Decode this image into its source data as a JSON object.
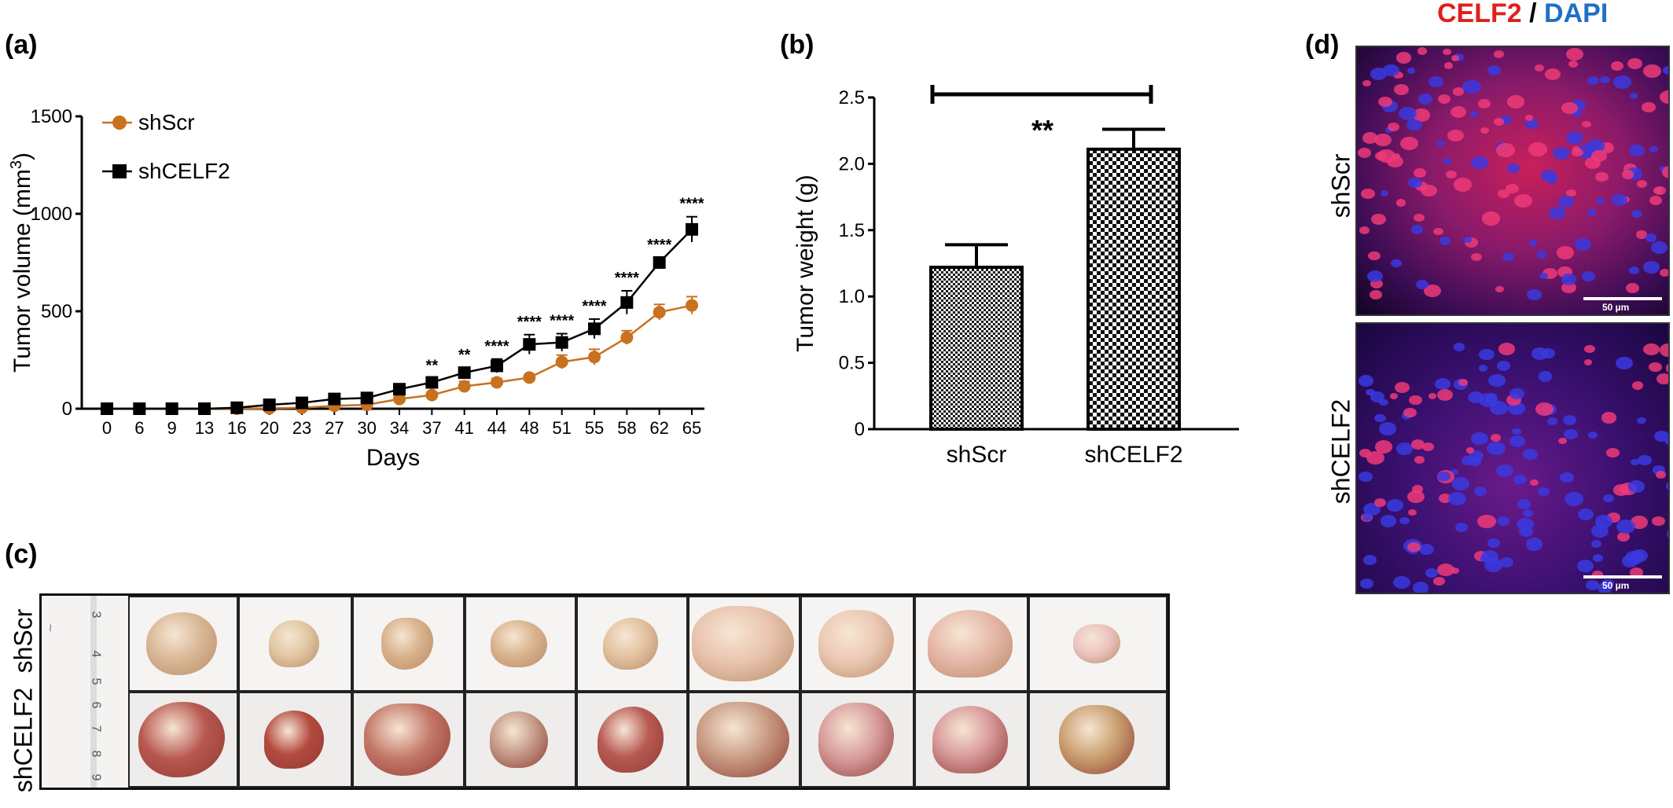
{
  "panels": {
    "a": "(a)",
    "b": "(b)",
    "c": "(c)",
    "d": "(d)"
  },
  "chart_data": [
    {
      "type": "line",
      "panel": "(a)",
      "xlabel": "Days",
      "ylabel": "Tumor volume (mm³)",
      "ylim": [
        0,
        1500
      ],
      "yticks": [
        0,
        500,
        1000,
        1500
      ],
      "categories": [
        "0",
        "6",
        "9",
        "13",
        "16",
        "20",
        "23",
        "27",
        "30",
        "34",
        "37",
        "41",
        "44",
        "48",
        "51",
        "55",
        "58",
        "62",
        "65"
      ],
      "legend_position": "top-left",
      "series": [
        {
          "name": "shScr",
          "color": "#c8711f",
          "marker": "circle",
          "values": [
            0,
            0,
            0,
            0,
            0,
            2,
            5,
            15,
            20,
            50,
            70,
            115,
            135,
            160,
            240,
            265,
            365,
            495,
            530
          ],
          "errors": [
            0,
            0,
            0,
            0,
            0,
            5,
            5,
            10,
            10,
            12,
            15,
            25,
            20,
            15,
            35,
            40,
            35,
            40,
            45
          ]
        },
        {
          "name": "shCELF2",
          "color": "#000000",
          "marker": "square",
          "values": [
            0,
            0,
            0,
            0,
            5,
            20,
            30,
            50,
            55,
            100,
            135,
            185,
            220,
            330,
            340,
            410,
            545,
            750,
            920
          ],
          "errors": [
            0,
            0,
            0,
            0,
            5,
            5,
            5,
            10,
            10,
            15,
            20,
            25,
            35,
            50,
            45,
            50,
            60,
            25,
            65
          ]
        }
      ],
      "annotations": [
        "",
        "",
        "",
        "",
        "",
        "",
        "",
        "",
        "",
        "",
        "**",
        "**",
        "****",
        "****",
        "****",
        "****",
        "****",
        "****",
        "****"
      ]
    },
    {
      "type": "bar",
      "panel": "(b)",
      "ylabel": "Tumor weight (g)",
      "ylim": [
        0,
        2.5
      ],
      "yticks": [
        "0",
        "0.5",
        "1.0",
        "1.5",
        "2.0",
        "2.5"
      ],
      "categories": [
        "shScr",
        "shCELF2"
      ],
      "values": [
        1.22,
        2.11
      ],
      "errors": [
        0.17,
        0.15
      ],
      "significance": "**"
    }
  ],
  "photo_panel": {
    "row_labels": [
      "shScr",
      "shCELF2"
    ],
    "ruler_marks_top": [
      "3",
      "4",
      "5"
    ],
    "ruler_marks_bottom": [
      "6",
      "7",
      "8",
      "9"
    ]
  },
  "micro_panel": {
    "title_red": "CELF2",
    "title_sep": " / ",
    "title_blue": "DAPI",
    "title_red_color": "#e0201b",
    "title_blue_color": "#1f6fc5",
    "row_labels": [
      "shScr",
      "shCELF2"
    ],
    "scale_label": "50 µm"
  }
}
